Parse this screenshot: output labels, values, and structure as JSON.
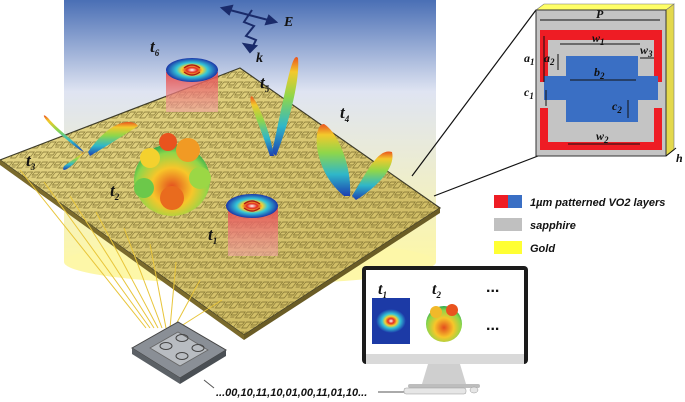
{
  "wave": {
    "field_label": "E",
    "wavevector_label": "k"
  },
  "time_labels": [
    {
      "id": "t1",
      "base": "t",
      "sub": "1"
    },
    {
      "id": "t2",
      "base": "t",
      "sub": "2"
    },
    {
      "id": "t3",
      "base": "t",
      "sub": "3"
    },
    {
      "id": "t4",
      "base": "t",
      "sub": "4"
    },
    {
      "id": "t5",
      "base": "t",
      "sub": "5"
    },
    {
      "id": "t6",
      "base": "t",
      "sub": "6"
    }
  ],
  "unit_cell": {
    "period": "P",
    "dims": [
      {
        "base": "w",
        "sub": "1"
      },
      {
        "base": "w",
        "sub": "3"
      },
      {
        "base": "a",
        "sub": "1"
      },
      {
        "base": "a",
        "sub": "2"
      },
      {
        "base": "b",
        "sub": "2"
      },
      {
        "base": "c",
        "sub": "1"
      },
      {
        "base": "c",
        "sub": "2"
      },
      {
        "base": "w",
        "sub": "2"
      }
    ],
    "thickness": "h"
  },
  "legend": [
    {
      "label": "1µm patterned VO2 layers",
      "colors": [
        "#ee1c24",
        "#3a6fc4"
      ]
    },
    {
      "label": "sapphire",
      "colors": [
        "#c0c0c0"
      ]
    },
    {
      "label": "Gold",
      "colors": [
        "#ffff33"
      ]
    }
  ],
  "monitor": {
    "labels": [
      {
        "base": "t",
        "sub": "1"
      },
      {
        "base": "t",
        "sub": "2"
      }
    ],
    "ellipsis": "..."
  },
  "bitstream": "...00,10,11,10,01,00,11,01,10..."
}
